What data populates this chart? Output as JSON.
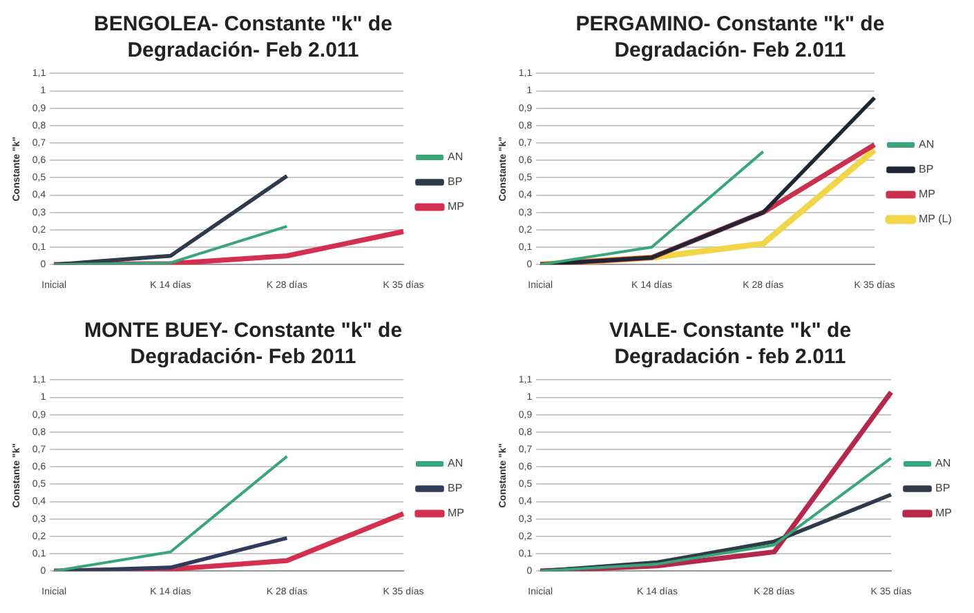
{
  "chart_data": [
    {
      "type": "line",
      "title": "BENGOLEA- Constante \"k\" de Degradación- Feb 2.011",
      "ylabel": "Constante \"k\"",
      "categories": [
        "Inicial",
        "K 14 días",
        "K 28 días",
        "K 35 días"
      ],
      "ylim": [
        0,
        1.1
      ],
      "yticks": [
        {
          "value": 0,
          "label": "0"
        },
        {
          "value": 0.1,
          "label": "0,1"
        },
        {
          "value": 0.2,
          "label": "0,2"
        },
        {
          "value": 0.3,
          "label": "0,3"
        },
        {
          "value": 0.4,
          "label": "0,4"
        },
        {
          "value": 0.5,
          "label": "0,5"
        },
        {
          "value": 0.6,
          "label": "0,6"
        },
        {
          "value": 0.7,
          "label": "0,7"
        },
        {
          "value": 0.8,
          "label": "0,8"
        },
        {
          "value": 0.9,
          "label": "0,9"
        },
        {
          "value": 1,
          "label": "1"
        },
        {
          "value": 1.1,
          "label": "1,1"
        }
      ],
      "grid": "y",
      "legend": "right",
      "marker": "none",
      "series": [
        {
          "name": "AN",
          "color": "#3aa57a",
          "values": [
            0,
            0.01,
            0.22,
            null
          ]
        },
        {
          "name": "BP",
          "color": "#2f3b4a",
          "values": [
            0,
            0.05,
            0.51,
            null
          ]
        },
        {
          "name": "MP",
          "color": "#d42f4e",
          "values": [
            0,
            0.005,
            0.05,
            0.19
          ]
        }
      ]
    },
    {
      "type": "line",
      "title": "PERGAMINO- Constante \"k\" de Degradación- Feb 2.011",
      "ylabel": "Constante \"k\"",
      "categories": [
        "Inicial",
        "K 14 días",
        "K 28 días",
        "K 35 días"
      ],
      "ylim": [
        0,
        1.1
      ],
      "yticks": [
        {
          "value": 0,
          "label": "0"
        },
        {
          "value": 0.1,
          "label": "0,1"
        },
        {
          "value": 0.2,
          "label": "0,2"
        },
        {
          "value": 0.3,
          "label": "0,3"
        },
        {
          "value": 0.4,
          "label": "0,4"
        },
        {
          "value": 0.5,
          "label": "0,5"
        },
        {
          "value": 0.6,
          "label": "0,6"
        },
        {
          "value": 0.7,
          "label": "0,7"
        },
        {
          "value": 0.8,
          "label": "0,8"
        },
        {
          "value": 0.9,
          "label": "0,9"
        },
        {
          "value": 1,
          "label": "1"
        },
        {
          "value": 1.1,
          "label": "1,1"
        }
      ],
      "grid": "y",
      "legend": "right",
      "marker": "none",
      "series": [
        {
          "name": "AN",
          "color": "#3aa57a",
          "values": [
            0,
            0.1,
            0.65,
            null
          ]
        },
        {
          "name": "BP",
          "color": "#1f2633",
          "values": [
            0,
            0.04,
            0.3,
            0.96
          ]
        },
        {
          "name": "MP",
          "color": "#c8304e",
          "values": [
            0,
            0.04,
            0.3,
            0.69
          ]
        },
        {
          "name": "MP (L)",
          "color": "#f2d64a",
          "values": [
            0,
            0.04,
            0.12,
            0.66
          ]
        }
      ]
    },
    {
      "type": "line",
      "title": "MONTE BUEY- Constante \"k\" de Degradación- Feb 2011",
      "ylabel": "Constante \"k\"",
      "categories": [
        "Inicial",
        "K 14 días",
        "K 28 días",
        "K 35 días"
      ],
      "ylim": [
        0,
        1.1
      ],
      "yticks": [
        {
          "value": 0,
          "label": "0"
        },
        {
          "value": 0.1,
          "label": "0,1"
        },
        {
          "value": 0.2,
          "label": "0,2"
        },
        {
          "value": 0.3,
          "label": "0,3"
        },
        {
          "value": 0.4,
          "label": "0,4"
        },
        {
          "value": 0.5,
          "label": "0,5"
        },
        {
          "value": 0.6,
          "label": "0,6"
        },
        {
          "value": 0.7,
          "label": "0,7"
        },
        {
          "value": 0.8,
          "label": "0,8"
        },
        {
          "value": 0.9,
          "label": "0,9"
        },
        {
          "value": 1,
          "label": "1"
        },
        {
          "value": 1.1,
          "label": "1,1"
        }
      ],
      "grid": "y",
      "legend": "right",
      "marker": "none",
      "series": [
        {
          "name": "AN",
          "color": "#3aa57a",
          "values": [
            0,
            0.11,
            0.66,
            null
          ]
        },
        {
          "name": "BP",
          "color": "#2f3b5a",
          "values": [
            0,
            0.02,
            0.19,
            null
          ]
        },
        {
          "name": "MP",
          "color": "#d42f4e",
          "values": [
            0,
            0.01,
            0.06,
            0.33
          ]
        }
      ]
    },
    {
      "type": "line",
      "title": "VIALE- Constante \"k\" de Degradación - feb 2.011",
      "ylabel": "Constante \"k\"",
      "categories": [
        "Inicial",
        "K 14 días",
        "K 28 días",
        "K 35 días"
      ],
      "ylim": [
        0,
        1.1
      ],
      "yticks": [
        {
          "value": 0,
          "label": "0"
        },
        {
          "value": 0.1,
          "label": "0,1"
        },
        {
          "value": 0.2,
          "label": "0,2"
        },
        {
          "value": 0.3,
          "label": "0,3"
        },
        {
          "value": 0.4,
          "label": "0,4"
        },
        {
          "value": 0.5,
          "label": "0,5"
        },
        {
          "value": 0.6,
          "label": "0,6"
        },
        {
          "value": 0.7,
          "label": "0,7"
        },
        {
          "value": 0.8,
          "label": "0,8"
        },
        {
          "value": 0.9,
          "label": "0,9"
        },
        {
          "value": 1,
          "label": "1"
        },
        {
          "value": 1.1,
          "label": "1,1"
        }
      ],
      "grid": "y",
      "legend": "right",
      "marker": "none",
      "series": [
        {
          "name": "AN",
          "color": "#3aa57a",
          "values": [
            0,
            0.04,
            0.15,
            0.65
          ]
        },
        {
          "name": "BP",
          "color": "#2f3b4a",
          "values": [
            0,
            0.05,
            0.17,
            0.44
          ]
        },
        {
          "name": "MP",
          "color": "#b5284e",
          "values": [
            0,
            0.03,
            0.11,
            1.03
          ]
        }
      ]
    }
  ]
}
